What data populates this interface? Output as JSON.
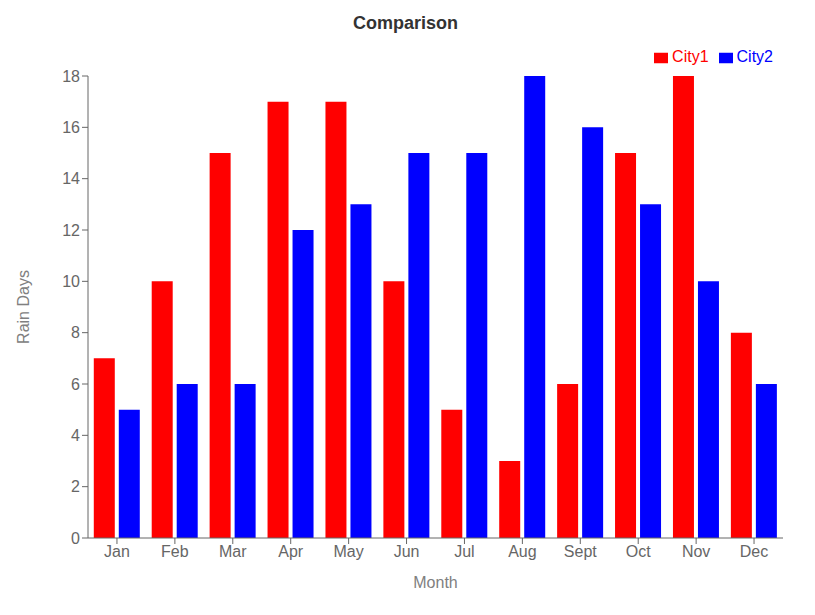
{
  "chart_data": {
    "type": "bar",
    "title": "Comparison",
    "xlabel": "Month",
    "ylabel": "Rain Days",
    "categories": [
      "Jan",
      "Feb",
      "Mar",
      "Apr",
      "May",
      "Jun",
      "Jul",
      "Aug",
      "Sept",
      "Oct",
      "Nov",
      "Dec"
    ],
    "series": [
      {
        "name": "City1",
        "color": "red",
        "values": [
          7,
          10,
          15,
          17,
          17,
          10,
          5,
          3,
          6,
          15,
          18,
          8
        ]
      },
      {
        "name": "City2",
        "color": "blue",
        "values": [
          5,
          6,
          6,
          12,
          13,
          15,
          15,
          18,
          16,
          13,
          10,
          6
        ]
      }
    ],
    "ylim": [
      0,
      18
    ],
    "yticks": [
      0,
      2,
      4,
      6,
      8,
      10,
      12,
      14,
      16,
      18
    ],
    "grid": false,
    "legend": "upper right"
  }
}
